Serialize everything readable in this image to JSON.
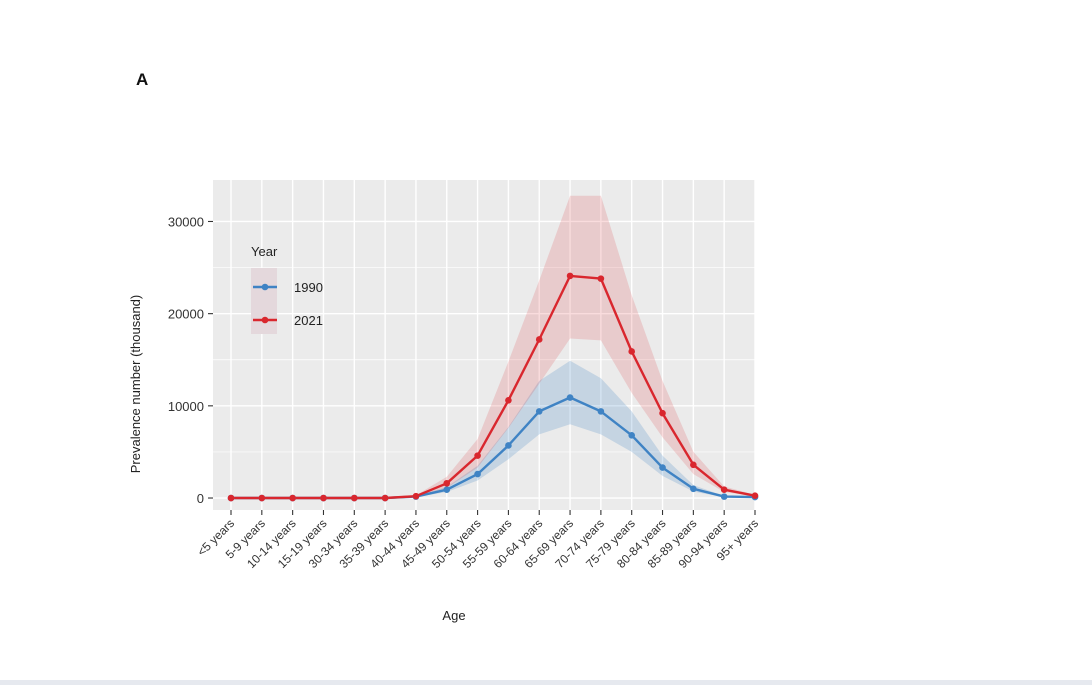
{
  "panel_label": "A",
  "chart_data": {
    "type": "line",
    "xlabel": "Age",
    "ylabel": "Prevalence number (thousand)",
    "ylim": [
      -1300,
      34500
    ],
    "yticks": [
      0,
      10000,
      20000,
      30000
    ],
    "ytick_labels": [
      "0",
      "10000",
      "20000",
      "30000"
    ],
    "grid": true,
    "legend": {
      "title": "Year",
      "placement": "top-left"
    },
    "categories": [
      "<5 years",
      "5-9 years",
      "10-14 years",
      "15-19 years",
      "30-34 years",
      "35-39 years",
      "40-44 years",
      "45-49 years",
      "50-54 years",
      "55-59 years",
      "60-64 years",
      "65-69 years",
      "70-74 years",
      "75-79 years",
      "80-84 years",
      "85-89 years",
      "90-94 years",
      "95+ years"
    ],
    "series": [
      {
        "name": "1990",
        "color": "#3f83c4",
        "values": [
          0,
          0,
          0,
          0,
          0,
          0,
          150,
          900,
          2600,
          5700,
          9400,
          10900,
          9400,
          6800,
          3300,
          1000,
          150,
          100
        ],
        "lower": [
          0,
          0,
          0,
          0,
          0,
          0,
          100,
          650,
          1900,
          4200,
          6900,
          8000,
          6900,
          5000,
          2400,
          700,
          100,
          50
        ],
        "upper": [
          0,
          0,
          0,
          0,
          0,
          0,
          220,
          1200,
          3500,
          7700,
          12700,
          14900,
          13000,
          9400,
          4600,
          1400,
          220,
          150
        ]
      },
      {
        "name": "2021",
        "color": "#d9272e",
        "values": [
          0,
          0,
          0,
          0,
          0,
          0,
          200,
          1600,
          4600,
          10600,
          17200,
          24100,
          23800,
          15900,
          9200,
          3600,
          900,
          250
        ],
        "lower": [
          0,
          0,
          0,
          0,
          0,
          0,
          150,
          1100,
          3300,
          7600,
          12400,
          17300,
          17100,
          11400,
          6600,
          2600,
          650,
          180
        ],
        "upper": [
          0,
          0,
          0,
          0,
          0,
          0,
          280,
          2300,
          6400,
          14800,
          23600,
          32800,
          32800,
          22000,
          12700,
          5000,
          1250,
          350
        ]
      }
    ]
  }
}
